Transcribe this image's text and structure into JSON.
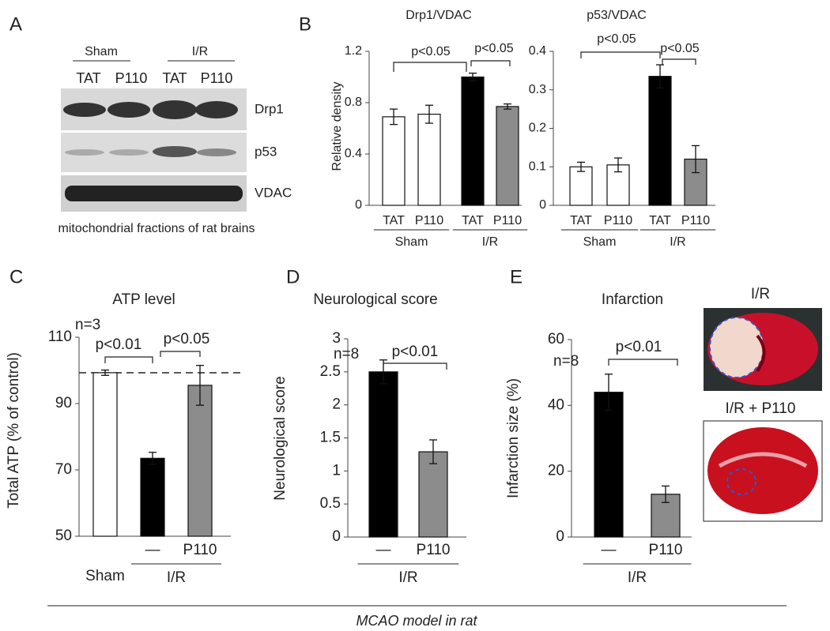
{
  "panel_labels": [
    "A",
    "B",
    "C",
    "D",
    "E"
  ],
  "blot": {
    "groups": [
      "Sham",
      "I/R"
    ],
    "lanes": [
      "TAT",
      "P110",
      "TAT",
      "P110"
    ],
    "rows": [
      "Drp1",
      "p53",
      "VDAC"
    ],
    "caption": "mitochondrial fractions of rat brains"
  },
  "images": [
    "I/R",
    "I/R + P110"
  ],
  "footer": "MCAO model in rat",
  "chart_data": [
    {
      "type": "bar",
      "title": "Drp1/VDAC",
      "y_label": "Relative density",
      "categories": [
        "TAT",
        "P110",
        "TAT",
        "P110"
      ],
      "groups": [
        {
          "name": "Sham",
          "span": [
            0,
            1
          ]
        },
        {
          "name": "I/R",
          "span": [
            2,
            3
          ]
        }
      ],
      "values": [
        0.69,
        0.71,
        1.0,
        0.77
      ],
      "errors": [
        0.06,
        0.07,
        0.03,
        0.02
      ],
      "colors": [
        "#ffffff",
        "#ffffff",
        "#000000",
        "#8c8c8c"
      ],
      "ylim": [
        0,
        1.2
      ],
      "yticks": [
        0,
        0.4,
        0.8,
        1.2
      ],
      "annotations": [
        "p<0.05",
        "p<0.05"
      ]
    },
    {
      "type": "bar",
      "title": "p53/VDAC",
      "categories": [
        "TAT",
        "P110",
        "TAT",
        "P110"
      ],
      "groups": [
        {
          "name": "Sham",
          "span": [
            0,
            1
          ]
        },
        {
          "name": "I/R",
          "span": [
            2,
            3
          ]
        }
      ],
      "values": [
        0.1,
        0.105,
        0.335,
        0.12
      ],
      "errors": [
        0.012,
        0.018,
        0.03,
        0.035
      ],
      "colors": [
        "#ffffff",
        "#ffffff",
        "#000000",
        "#8c8c8c"
      ],
      "ylim": [
        0,
        0.4
      ],
      "yticks": [
        0,
        0.1,
        0.2,
        0.3,
        0.4
      ],
      "annotations": [
        "p<0.05",
        "p<0.05"
      ]
    },
    {
      "type": "bar",
      "title": "ATP level",
      "y_label": "Total ATP (% of control)",
      "categories": [
        "Sham",
        "—",
        "P110"
      ],
      "groups": [
        {
          "name": "I/R",
          "span": [
            1,
            2
          ]
        }
      ],
      "values": [
        99.3,
        73.5,
        95.5
      ],
      "errors": [
        0.8,
        1.8,
        6
      ],
      "colors": [
        "#ffffff",
        "#000000",
        "#8c8c8c"
      ],
      "ylim": [
        50,
        110
      ],
      "yticks": [
        50,
        70,
        90,
        110
      ],
      "reference_line": 99.3,
      "annotations": [
        "n=3",
        "p<0.01",
        "p<0.05"
      ]
    },
    {
      "type": "bar",
      "title": "Neurological score",
      "y_label": "Neurological score",
      "categories": [
        "—",
        "P110"
      ],
      "groups": [
        {
          "name": "I/R",
          "span": [
            0,
            1
          ]
        }
      ],
      "values": [
        2.5,
        1.29
      ],
      "errors": [
        0.18,
        0.18
      ],
      "colors": [
        "#000000",
        "#8c8c8c"
      ],
      "ylim": [
        0,
        3
      ],
      "yticks": [
        0,
        0.5,
        1,
        1.5,
        2,
        2.5,
        3
      ],
      "annotations": [
        "n=8",
        "p<0.01"
      ]
    },
    {
      "type": "bar",
      "title": "Infarction",
      "y_label": "Infarction size (%)",
      "categories": [
        "—",
        "P110"
      ],
      "groups": [
        {
          "name": "I/R",
          "span": [
            0,
            1
          ]
        }
      ],
      "values": [
        44,
        13
      ],
      "errors": [
        5.5,
        2.5
      ],
      "colors": [
        "#000000",
        "#8c8c8c"
      ],
      "ylim": [
        0,
        60
      ],
      "yticks": [
        0,
        20,
        40,
        60
      ],
      "annotations": [
        "n=8",
        "p<0.01"
      ]
    }
  ]
}
